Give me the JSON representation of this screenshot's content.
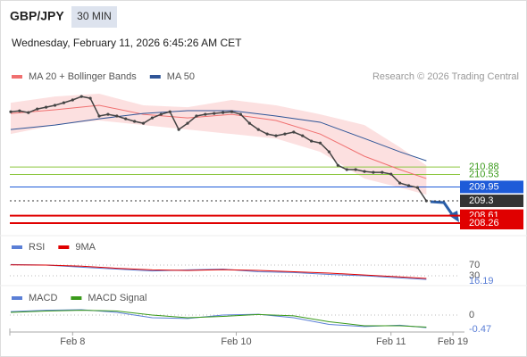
{
  "header": {
    "symbol": "GBP/JPY",
    "timeframe": "30 MIN",
    "datetime": "Wednesday, February 11, 2026 6:45:26 AM CET",
    "credit": "Research © 2026 Trading Central"
  },
  "chart_data": [
    {
      "type": "line",
      "name": "price",
      "x": [
        0,
        1,
        2,
        3,
        4,
        5,
        6,
        7,
        8,
        9,
        10,
        11,
        12,
        13,
        14,
        15,
        16,
        17,
        18,
        19,
        20,
        21,
        22,
        23,
        24,
        25,
        26,
        27,
        28,
        29,
        30,
        31,
        32,
        33,
        34,
        35,
        36,
        37,
        38,
        39,
        40,
        41,
        42,
        43,
        44,
        45,
        46,
        47
      ],
      "values": [
        213.46,
        213.5,
        213.42,
        213.59,
        213.67,
        213.76,
        213.88,
        214.01,
        214.17,
        214.09,
        213.26,
        213.34,
        213.26,
        213.13,
        213.01,
        212.92,
        213.17,
        213.34,
        213.46,
        212.63,
        212.92,
        213.26,
        213.34,
        213.38,
        213.42,
        213.46,
        213.34,
        212.92,
        212.63,
        212.42,
        212.34,
        212.42,
        212.51,
        212.34,
        212.09,
        212.0,
        211.59,
        210.96,
        210.76,
        210.76,
        210.67,
        210.63,
        210.63,
        210.55,
        210.13,
        210.01,
        209.92,
        209.3
      ],
      "color": "#444",
      "overlays": [
        {
          "name": "MA 20 + Bollinger Bands",
          "color": "#f07070",
          "band_color": "#fbd3d3",
          "x": [
            0,
            5,
            10,
            15,
            20,
            25,
            30,
            35,
            40,
            44,
            47
          ],
          "values": [
            213.38,
            213.55,
            213.76,
            213.34,
            213.17,
            213.34,
            213.05,
            212.42,
            211.38,
            210.76,
            210.34
          ],
          "upper": [
            213.88,
            214.17,
            214.3,
            213.76,
            213.67,
            214.01,
            213.76,
            213.34,
            212.84,
            211.8,
            210.96
          ],
          "lower": [
            212.42,
            212.84,
            213.05,
            212.84,
            212.63,
            212.42,
            212.21,
            211.59,
            210.34,
            209.92,
            209.59
          ]
        },
        {
          "name": "MA 50",
          "color": "#2f5597",
          "x": [
            0,
            5,
            10,
            15,
            20,
            25,
            30,
            35,
            40,
            44,
            47
          ],
          "values": [
            212.63,
            212.84,
            213.13,
            213.38,
            213.51,
            213.51,
            213.26,
            212.97,
            212.21,
            211.59,
            211.17
          ]
        }
      ],
      "levels": [
        {
          "value": 210.88,
          "color": "#8cc63f"
        },
        {
          "value": 210.53,
          "color": "#8cc63f"
        },
        {
          "value": 209.95,
          "color": "#1e5bd8"
        },
        {
          "value": 209.3,
          "color": "#333333"
        },
        {
          "value": 208.61,
          "color": "#e00000"
        },
        {
          "value": 208.26,
          "color": "#e00000"
        }
      ],
      "xlim": [
        0,
        50.5
      ],
      "ylim": [
        207.76,
        214.76
      ],
      "xticks": [
        {
          "value": 7,
          "label": "Feb 8"
        },
        {
          "value": 25.5,
          "label": "Feb 10"
        },
        {
          "value": 43,
          "label": "Feb 11"
        },
        {
          "value": 50,
          "label": "Feb 19"
        }
      ]
    },
    {
      "type": "line",
      "name": "rsi",
      "x": [
        0,
        4,
        8,
        12,
        16,
        20,
        24,
        28,
        32,
        36,
        40,
        44,
        47
      ],
      "series": [
        {
          "name": "RSI",
          "color": "#5b7fd6",
          "values": [
            72,
            70,
            62,
            55,
            48,
            52,
            55,
            45,
            42,
            35,
            30,
            22,
            16.19
          ]
        },
        {
          "name": "9MA",
          "color": "#e00000",
          "values": [
            71,
            70,
            66,
            58,
            52,
            50,
            53,
            50,
            45,
            40,
            33,
            26,
            20
          ]
        }
      ],
      "ylim": [
        0,
        100
      ],
      "yticks": [
        70,
        30
      ]
    },
    {
      "type": "line",
      "name": "macd",
      "x": [
        0,
        4,
        8,
        12,
        16,
        20,
        24,
        28,
        32,
        36,
        40,
        44,
        47
      ],
      "series": [
        {
          "name": "MACD",
          "color": "#5b7fd6",
          "values": [
            0.13,
            0.18,
            0.2,
            0.1,
            -0.1,
            -0.13,
            0.0,
            0.03,
            -0.1,
            -0.35,
            -0.43,
            -0.38,
            -0.47
          ]
        },
        {
          "name": "MACD Signal",
          "color": "#3a9a1a",
          "values": [
            0.1,
            0.15,
            0.18,
            0.15,
            0.0,
            -0.1,
            -0.05,
            0.02,
            -0.03,
            -0.25,
            -0.4,
            -0.4,
            -0.45
          ]
        }
      ],
      "ylim": [
        -0.6,
        0.6
      ],
      "yticks": [
        0
      ]
    }
  ]
}
